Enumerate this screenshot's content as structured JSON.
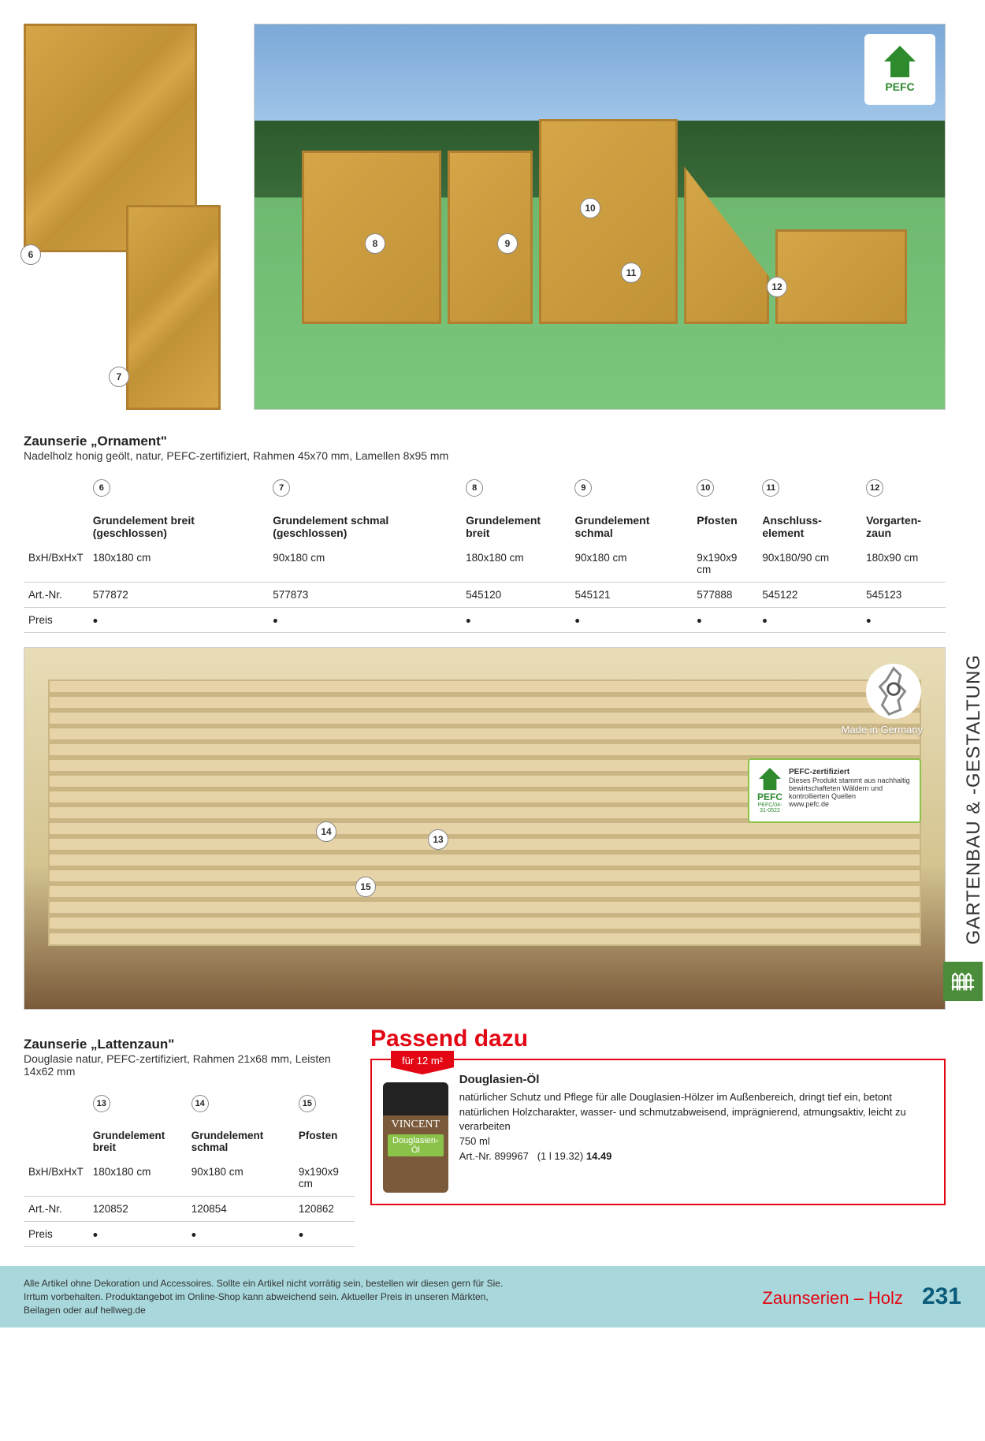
{
  "series1": {
    "title": "Zaunserie „Ornament\"",
    "subtitle": "Nadelholz honig geölt, natur, PEFC-zertifiziert, Rahmen 45x70 mm, Lamellen 8x95 mm",
    "cols": [
      {
        "num": "6",
        "label": "Grundelement breit (geschlossen)"
      },
      {
        "num": "7",
        "label": "Grundelement schmal (geschlossen)"
      },
      {
        "num": "8",
        "label": "Grundelement breit"
      },
      {
        "num": "9",
        "label": "Grundelement schmal"
      },
      {
        "num": "10",
        "label": "Pfosten"
      },
      {
        "num": "11",
        "label": "Anschluss­element"
      },
      {
        "num": "12",
        "label": "Vorgarten­zaun"
      }
    ],
    "rows": [
      {
        "label": "BxH/BxHxT",
        "vals": [
          "180x180 cm",
          "90x180 cm",
          "180x180 cm",
          "90x180 cm",
          "9x190x9 cm",
          "90x180/90 cm",
          "180x90 cm"
        ]
      },
      {
        "label": "Art.-Nr.",
        "vals": [
          "577872",
          "577873",
          "545120",
          "545121",
          "577888",
          "545122",
          "545123"
        ]
      },
      {
        "label": "Preis",
        "vals": [
          "•",
          "•",
          "•",
          "•",
          "•",
          "•",
          "•"
        ]
      }
    ]
  },
  "pefc": {
    "label": "PEFC",
    "cert_id": "PEFC/04-31-0522",
    "box_title": "PEFC-zertifiziert",
    "box_text": "Dieses Produkt stammt aus nachhaltig bewirtschafteten Wäldern und kontrollierten Quellen",
    "box_url": "www.pefc.de"
  },
  "made_in": "Made in Germany",
  "series2": {
    "title": "Zaunserie „Lattenzaun\"",
    "subtitle": "Douglasie natur, PEFC-zertifiziert, Rahmen 21x68 mm, Leisten 14x62 mm",
    "cols": [
      {
        "num": "13",
        "label": "Grundelement breit"
      },
      {
        "num": "14",
        "label": "Grundelement schmal"
      },
      {
        "num": "15",
        "label": "Pfosten"
      }
    ],
    "rows": [
      {
        "label": "BxH/BxHxT",
        "vals": [
          "180x180 cm",
          "90x180 cm",
          "9x190x9 cm"
        ]
      },
      {
        "label": "Art.-Nr.",
        "vals": [
          "120852",
          "120854",
          "120862"
        ]
      },
      {
        "label": "Preis",
        "vals": [
          "•",
          "•",
          "•"
        ]
      }
    ]
  },
  "passend": {
    "heading": "Passend dazu",
    "area": "für 12 m²",
    "can_brand": "VINCENT",
    "can_name": "Douglasien-Öl",
    "product_title": "Douglasien-Öl",
    "description": "natürlicher Schutz und Pflege für alle Douglasien-Hölzer im Außenbereich, dringt tief ein, betont natürlichen Holzcharakter, wasser- und schmutzabweisend, imprägnierend, atmungsaktiv, leicht zu verarbeiten",
    "size": "750 ml",
    "art_prefix": "Art.-Nr. 899967",
    "unit_price": "(1 l 19.32)",
    "price": "14.49"
  },
  "sidebar": {
    "category": "GARTENBAU & -GESTALTUNG"
  },
  "footer": {
    "disclaimer": "Alle Artikel ohne Dekoration und Accessoires. Sollte ein Artikel nicht vorrätig sein, bestellen wir diesen gern für Sie. Irrtum vorbehalten. Produktangebot im Online-Shop kann abweichend sein. Aktueller Preis in unseren Märkten, Beilagen oder auf hellweg.de",
    "breadcrumb": "Zaunserien – Holz",
    "page": "231"
  },
  "markers": {
    "m6": "6",
    "m7": "7",
    "m8": "8",
    "m9": "9",
    "m10": "10",
    "m11": "11",
    "m12": "12",
    "m13": "13",
    "m14": "14",
    "m15": "15"
  }
}
